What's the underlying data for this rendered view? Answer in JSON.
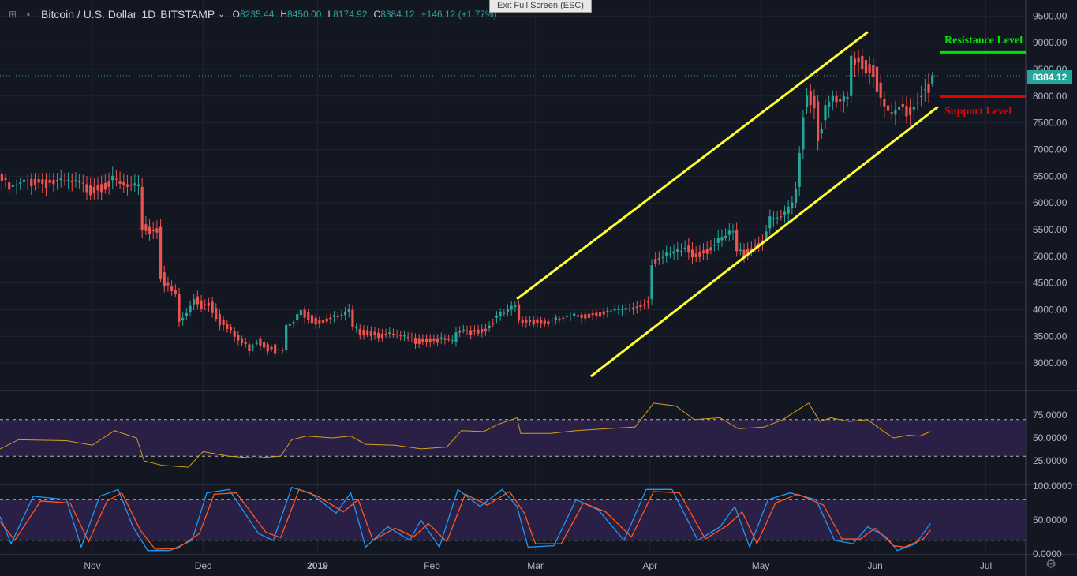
{
  "header": {
    "symbol": "Bitcoin / U.S. Dollar",
    "interval": "1D",
    "exchange": "BITSTAMP",
    "ohlc": {
      "o_label": "O",
      "o": "8235.44",
      "h_label": "H",
      "h": "8450.00",
      "l_label": "L",
      "l": "8174.92",
      "c_label": "C",
      "c": "8384.12",
      "change": "+146.12 (+1.77%)"
    }
  },
  "exit_fullscreen": "Exit Full Screen (ESC)",
  "last_price_label": "8384.12",
  "annotations": {
    "resistance": "Resistance Level",
    "support": "Support Level"
  },
  "colors": {
    "background": "#131722",
    "up": "#26a69a",
    "down": "#ef5350",
    "channel": "#ffff33",
    "resistance": "#00e600",
    "support": "#e60000",
    "rsi_line": "#d4a017",
    "stoch_k": "#2196f3",
    "stoch_d": "#ff5722",
    "osc_band": "#2a1f45"
  },
  "icons": [
    "crosshair-icon",
    "square-icon",
    "chevron-down-icon",
    "gear-icon"
  ],
  "chart_data": {
    "type": "candlestick",
    "series_name": "Bitcoin / U.S. Dollar",
    "price_axis_ticks": [
      "9500.00",
      "9000.00",
      "8500.00",
      "8000.00",
      "7500.00",
      "7000.00",
      "6500.00",
      "6000.00",
      "5500.00",
      "5000.00",
      "4500.00",
      "4000.00",
      "3500.00",
      "3000.00"
    ],
    "price_range": [
      2500,
      9800
    ],
    "x_labels": [
      "Nov",
      "Dec",
      "2019",
      "Feb",
      "Mar",
      "Apr",
      "May",
      "Jun",
      "Jul"
    ],
    "x_label_dates": [
      "2018-11-01",
      "2018-12-01",
      "2019-01-01",
      "2019-02-01",
      "2019-03-01",
      "2019-04-01",
      "2019-05-01",
      "2019-06-01",
      "2019-07-01"
    ],
    "start_date": "2018-10-07",
    "price_path": [
      [
        "2018-10-07",
        6550
      ],
      [
        "2018-10-10",
        6300
      ],
      [
        "2018-10-15",
        6450
      ],
      [
        "2018-10-25",
        6420
      ],
      [
        "2018-10-28",
        6400
      ],
      [
        "2018-11-01",
        6300
      ],
      [
        "2018-11-07",
        6450
      ],
      [
        "2018-11-10",
        6350
      ],
      [
        "2018-11-14",
        6300
      ],
      [
        "2018-11-15",
        5600
      ],
      [
        "2018-11-17",
        5500
      ],
      [
        "2018-11-19",
        5550
      ],
      [
        "2018-11-20",
        4700
      ],
      [
        "2018-11-21",
        4500
      ],
      [
        "2018-11-24",
        4300
      ],
      [
        "2018-11-25",
        3800
      ],
      [
        "2018-11-27",
        3950
      ],
      [
        "2018-11-29",
        4250
      ],
      [
        "2018-12-01",
        4100
      ],
      [
        "2018-12-03",
        4150
      ],
      [
        "2018-12-06",
        3800
      ],
      [
        "2018-12-09",
        3600
      ],
      [
        "2018-12-11",
        3450
      ],
      [
        "2018-12-14",
        3300
      ],
      [
        "2018-12-16",
        3450
      ],
      [
        "2018-12-19",
        3300
      ],
      [
        "2018-12-20",
        3350
      ],
      [
        "2018-12-21",
        3250
      ],
      [
        "2018-12-23",
        3250
      ],
      [
        "2018-12-24",
        3700
      ],
      [
        "2018-12-26",
        3800
      ],
      [
        "2018-12-28",
        4000
      ],
      [
        "2018-12-30",
        3900
      ],
      [
        "2019-01-01",
        3800
      ],
      [
        "2019-01-04",
        3850
      ],
      [
        "2019-01-08",
        3900
      ],
      [
        "2019-01-10",
        4000
      ],
      [
        "2019-01-11",
        3650
      ],
      [
        "2019-01-15",
        3600
      ],
      [
        "2019-01-18",
        3550
      ],
      [
        "2019-01-21",
        3550
      ],
      [
        "2019-01-24",
        3500
      ],
      [
        "2019-01-28",
        3450
      ],
      [
        "2019-02-01",
        3450
      ],
      [
        "2019-02-05",
        3450
      ],
      [
        "2019-02-07",
        3400
      ],
      [
        "2019-02-08",
        3600
      ],
      [
        "2019-02-12",
        3620
      ],
      [
        "2019-02-16",
        3650
      ],
      [
        "2019-02-18",
        3850
      ],
      [
        "2019-02-22",
        4000
      ],
      [
        "2019-02-24",
        4100
      ],
      [
        "2019-02-25",
        3800
      ],
      [
        "2019-03-01",
        3820
      ],
      [
        "2019-03-04",
        3780
      ],
      [
        "2019-03-08",
        3850
      ],
      [
        "2019-03-12",
        3900
      ],
      [
        "2019-03-16",
        3930
      ],
      [
        "2019-03-20",
        3980
      ],
      [
        "2019-03-25",
        4000
      ],
      [
        "2019-03-30",
        4100
      ],
      [
        "2019-04-01",
        4200
      ],
      [
        "2019-04-02",
        4950
      ],
      [
        "2019-04-05",
        5000
      ],
      [
        "2019-04-09",
        5100
      ],
      [
        "2019-04-11",
        5200
      ],
      [
        "2019-04-13",
        5050
      ],
      [
        "2019-04-18",
        5200
      ],
      [
        "2019-04-22",
        5400
      ],
      [
        "2019-04-24",
        5500
      ],
      [
        "2019-04-25",
        5100
      ],
      [
        "2019-04-28",
        5150
      ],
      [
        "2019-05-02",
        5350
      ],
      [
        "2019-05-04",
        5700
      ],
      [
        "2019-05-08",
        5800
      ],
      [
        "2019-05-10",
        6000
      ],
      [
        "2019-05-11",
        6300
      ],
      [
        "2019-05-12",
        7000
      ],
      [
        "2019-05-13",
        7800
      ],
      [
        "2019-05-14",
        8100
      ],
      [
        "2019-05-16",
        7900
      ],
      [
        "2019-05-17",
        7300
      ],
      [
        "2019-05-19",
        7800
      ],
      [
        "2019-05-21",
        8000
      ],
      [
        "2019-05-23",
        7900
      ],
      [
        "2019-05-25",
        8000
      ],
      [
        "2019-05-26",
        8700
      ],
      [
        "2019-05-28",
        8750
      ],
      [
        "2019-05-30",
        8600
      ],
      [
        "2019-06-01",
        8550
      ],
      [
        "2019-06-03",
        7950
      ],
      [
        "2019-06-05",
        7700
      ],
      [
        "2019-06-06",
        7650
      ],
      [
        "2019-06-08",
        7850
      ],
      [
        "2019-06-11",
        7750
      ],
      [
        "2019-06-13",
        8000
      ],
      [
        "2019-06-15",
        8235
      ]
    ],
    "last_candle": {
      "date": "2019-06-16",
      "open": 8235.44,
      "high": 8450.0,
      "low": 8174.92,
      "close": 8384.12
    },
    "overlays": {
      "channel_upper": [
        [
          "2019-02-24",
          4200
        ],
        [
          "2019-05-30",
          9200
        ]
      ],
      "channel_lower": [
        [
          "2019-03-16",
          2750
        ],
        [
          "2019-06-18",
          7800
        ]
      ],
      "resistance_level": 8820,
      "support_level": 7990
    },
    "rsi": {
      "ticks": [
        "75.0000",
        "50.0000",
        "25.0000"
      ],
      "range": [
        0,
        100
      ],
      "bands": [
        30,
        70
      ],
      "values": [
        [
          "2018-10-07",
          38
        ],
        [
          "2018-10-12",
          48
        ],
        [
          "2018-10-25",
          47
        ],
        [
          "2018-11-01",
          42
        ],
        [
          "2018-11-07",
          58
        ],
        [
          "2018-11-13",
          50
        ],
        [
          "2018-11-15",
          25
        ],
        [
          "2018-11-20",
          20
        ],
        [
          "2018-11-27",
          18
        ],
        [
          "2018-12-01",
          35
        ],
        [
          "2018-12-08",
          30
        ],
        [
          "2018-12-15",
          28
        ],
        [
          "2018-12-22",
          30
        ],
        [
          "2018-12-25",
          48
        ],
        [
          "2018-12-29",
          52
        ],
        [
          "2019-01-05",
          50
        ],
        [
          "2019-01-10",
          52
        ],
        [
          "2019-01-14",
          43
        ],
        [
          "2019-01-22",
          42
        ],
        [
          "2019-01-29",
          38
        ],
        [
          "2019-02-05",
          40
        ],
        [
          "2019-02-09",
          58
        ],
        [
          "2019-02-15",
          57
        ],
        [
          "2019-02-19",
          65
        ],
        [
          "2019-02-24",
          72
        ],
        [
          "2019-02-25",
          55
        ],
        [
          "2019-03-05",
          55
        ],
        [
          "2019-03-12",
          58
        ],
        [
          "2019-03-20",
          60
        ],
        [
          "2019-03-28",
          62
        ],
        [
          "2019-04-02",
          88
        ],
        [
          "2019-04-08",
          85
        ],
        [
          "2019-04-13",
          70
        ],
        [
          "2019-04-20",
          72
        ],
        [
          "2019-04-25",
          60
        ],
        [
          "2019-05-02",
          62
        ],
        [
          "2019-05-07",
          70
        ],
        [
          "2019-05-12",
          83
        ],
        [
          "2019-05-14",
          88
        ],
        [
          "2019-05-17",
          68
        ],
        [
          "2019-05-20",
          72
        ],
        [
          "2019-05-25",
          68
        ],
        [
          "2019-05-30",
          70
        ],
        [
          "2019-06-03",
          58
        ],
        [
          "2019-06-06",
          50
        ],
        [
          "2019-06-10",
          53
        ],
        [
          "2019-06-13",
          52
        ],
        [
          "2019-06-16",
          57
        ]
      ]
    },
    "stochastic": {
      "ticks": [
        "100.0000",
        "50.0000",
        "0.0000"
      ],
      "range": [
        0,
        100
      ],
      "bands": [
        20,
        80
      ],
      "k_values": [
        [
          "2018-10-07",
          55
        ],
        [
          "2018-10-10",
          15
        ],
        [
          "2018-10-16",
          85
        ],
        [
          "2018-10-25",
          80
        ],
        [
          "2018-10-29",
          10
        ],
        [
          "2018-11-03",
          85
        ],
        [
          "2018-11-08",
          95
        ],
        [
          "2018-11-12",
          40
        ],
        [
          "2018-11-16",
          5
        ],
        [
          "2018-11-22",
          5
        ],
        [
          "2018-11-28",
          20
        ],
        [
          "2018-12-02",
          90
        ],
        [
          "2018-12-08",
          95
        ],
        [
          "2018-12-16",
          30
        ],
        [
          "2018-12-20",
          20
        ],
        [
          "2018-12-25",
          98
        ],
        [
          "2018-12-30",
          90
        ],
        [
          "2019-01-06",
          60
        ],
        [
          "2019-01-10",
          90
        ],
        [
          "2019-01-14",
          10
        ],
        [
          "2019-01-20",
          40
        ],
        [
          "2019-01-26",
          20
        ],
        [
          "2019-01-29",
          50
        ],
        [
          "2019-02-03",
          10
        ],
        [
          "2019-02-08",
          95
        ],
        [
          "2019-02-14",
          70
        ],
        [
          "2019-02-20",
          95
        ],
        [
          "2019-02-24",
          70
        ],
        [
          "2019-02-27",
          10
        ],
        [
          "2019-03-06",
          12
        ],
        [
          "2019-03-12",
          80
        ],
        [
          "2019-03-18",
          65
        ],
        [
          "2019-03-25",
          20
        ],
        [
          "2019-03-31",
          95
        ],
        [
          "2019-04-07",
          95
        ],
        [
          "2019-04-14",
          20
        ],
        [
          "2019-04-20",
          40
        ],
        [
          "2019-04-24",
          70
        ],
        [
          "2019-04-28",
          10
        ],
        [
          "2019-05-03",
          80
        ],
        [
          "2019-05-09",
          90
        ],
        [
          "2019-05-16",
          80
        ],
        [
          "2019-05-21",
          20
        ],
        [
          "2019-05-26",
          15
        ],
        [
          "2019-05-30",
          40
        ],
        [
          "2019-06-04",
          25
        ],
        [
          "2019-06-07",
          5
        ],
        [
          "2019-06-12",
          15
        ],
        [
          "2019-06-16",
          45
        ]
      ],
      "d_values": [
        [
          "2018-10-07",
          48
        ],
        [
          "2018-10-11",
          20
        ],
        [
          "2018-10-18",
          78
        ],
        [
          "2018-10-26",
          75
        ],
        [
          "2018-10-31",
          18
        ],
        [
          "2018-11-05",
          78
        ],
        [
          "2018-11-09",
          90
        ],
        [
          "2018-11-14",
          35
        ],
        [
          "2018-11-18",
          7
        ],
        [
          "2018-11-24",
          8
        ],
        [
          "2018-11-30",
          30
        ],
        [
          "2018-12-04",
          88
        ],
        [
          "2018-12-10",
          90
        ],
        [
          "2018-12-18",
          32
        ],
        [
          "2018-12-22",
          24
        ],
        [
          "2018-12-27",
          95
        ],
        [
          "2019-01-01",
          85
        ],
        [
          "2019-01-08",
          62
        ],
        [
          "2019-01-12",
          80
        ],
        [
          "2019-01-16",
          20
        ],
        [
          "2019-01-22",
          38
        ],
        [
          "2019-01-27",
          25
        ],
        [
          "2019-01-31",
          45
        ],
        [
          "2019-02-05",
          18
        ],
        [
          "2019-02-10",
          88
        ],
        [
          "2019-02-16",
          72
        ],
        [
          "2019-02-22",
          92
        ],
        [
          "2019-02-26",
          60
        ],
        [
          "2019-03-01",
          15
        ],
        [
          "2019-03-08",
          15
        ],
        [
          "2019-03-14",
          75
        ],
        [
          "2019-03-20",
          62
        ],
        [
          "2019-03-27",
          25
        ],
        [
          "2019-04-02",
          92
        ],
        [
          "2019-04-09",
          90
        ],
        [
          "2019-04-16",
          22
        ],
        [
          "2019-04-22",
          42
        ],
        [
          "2019-04-26",
          62
        ],
        [
          "2019-04-30",
          15
        ],
        [
          "2019-05-05",
          75
        ],
        [
          "2019-05-11",
          88
        ],
        [
          "2019-05-18",
          72
        ],
        [
          "2019-05-23",
          22
        ],
        [
          "2019-05-28",
          22
        ],
        [
          "2019-06-01",
          38
        ],
        [
          "2019-06-06",
          12
        ],
        [
          "2019-06-09",
          10
        ],
        [
          "2019-06-14",
          22
        ],
        [
          "2019-06-16",
          35
        ]
      ]
    }
  }
}
